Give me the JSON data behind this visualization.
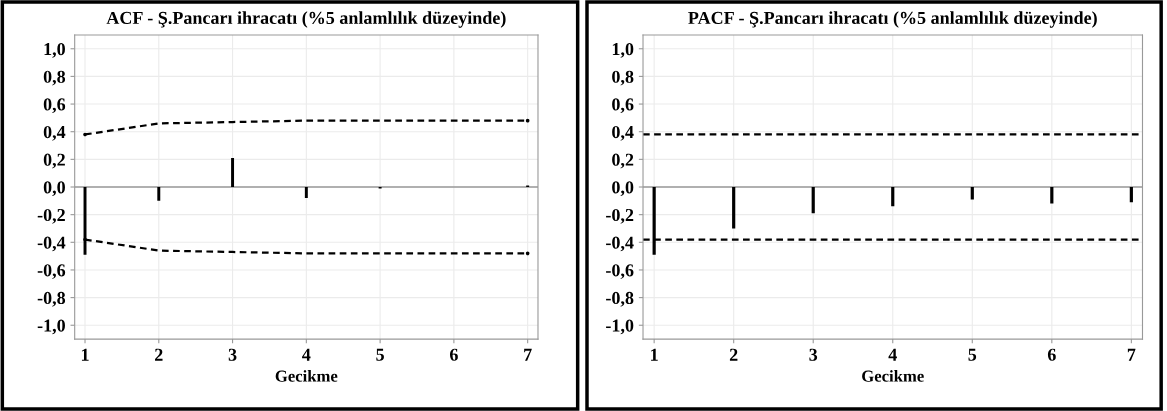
{
  "chart_data": [
    {
      "type": "bar",
      "title": "ACF - Ş.Pancarı ihracatı (%5 anlamlılık düzeyinde)",
      "xlabel": "Gecikme",
      "x": [
        1,
        2,
        3,
        4,
        5,
        6,
        7
      ],
      "series": [
        {
          "color": "#000000",
          "values": [
            -0.49,
            -0.1,
            0.21,
            -0.08,
            -0.01,
            0.0,
            0.01
          ]
        },
        {
          "type": "line",
          "color": "#000000",
          "line_style": "dashed",
          "x": [
            1,
            2,
            3,
            4,
            5,
            6,
            7
          ],
          "values": [
            0.38,
            0.46,
            0.47,
            0.48,
            0.48,
            0.48,
            0.48
          ]
        },
        {
          "type": "line",
          "color": "#000000",
          "line_style": "dashed",
          "x": [
            1,
            2,
            3,
            4,
            5,
            6,
            7
          ],
          "values": [
            -0.38,
            -0.46,
            -0.47,
            -0.48,
            -0.48,
            -0.48,
            -0.48
          ]
        }
      ],
      "ref_lines": [
        {
          "axis": "y",
          "value": 0,
          "color": "#999999"
        }
      ],
      "xlim": [
        0.86,
        7.14
      ],
      "xticks": [
        1,
        2,
        3,
        4,
        5,
        6,
        7
      ],
      "ylim": [
        -1.1,
        1.1
      ],
      "yticks": [
        {
          "value": -1.0,
          "label": "-1,0"
        },
        {
          "value": -0.8,
          "label": "-0,8"
        },
        {
          "value": -0.6,
          "label": "-0,6"
        },
        {
          "value": -0.4,
          "label": "-0,4"
        },
        {
          "value": -0.2,
          "label": "-0,2"
        },
        {
          "value": 0.0,
          "label": "0,0"
        },
        {
          "value": 0.2,
          "label": "0,2"
        },
        {
          "value": 0.4,
          "label": "0,4"
        },
        {
          "value": 0.6,
          "label": "0,6"
        },
        {
          "value": 0.8,
          "label": "0,8"
        },
        {
          "value": 1.0,
          "label": "1,0"
        }
      ],
      "grid": true
    },
    {
      "type": "bar",
      "title": "PACF - Ş.Pancarı ihracatı (%5 anlamlılık düzeyinde)",
      "xlabel": "Gecikme",
      "x": [
        1,
        2,
        3,
        4,
        5,
        6,
        7
      ],
      "series": [
        {
          "color": "#000000",
          "values": [
            -0.49,
            -0.3,
            -0.19,
            -0.14,
            -0.09,
            -0.12,
            -0.11
          ]
        }
      ],
      "ref_lines": [
        {
          "axis": "y",
          "value": 0,
          "color": "#999999"
        },
        {
          "axis": "y",
          "value": 0.38,
          "color": "#000000",
          "line_style": "dashed"
        },
        {
          "axis": "y",
          "value": -0.38,
          "color": "#000000",
          "line_style": "dashed"
        }
      ],
      "xlim": [
        0.86,
        7.14
      ],
      "xticks": [
        1,
        2,
        3,
        4,
        5,
        6,
        7
      ],
      "ylim": [
        -1.1,
        1.1
      ],
      "yticks": [
        {
          "value": -1.0,
          "label": "-1,0"
        },
        {
          "value": -0.8,
          "label": "-0,8"
        },
        {
          "value": -0.6,
          "label": "-0,6"
        },
        {
          "value": -0.4,
          "label": "-0,4"
        },
        {
          "value": -0.2,
          "label": "-0,2"
        },
        {
          "value": 0.0,
          "label": "0,0"
        },
        {
          "value": 0.2,
          "label": "0,2"
        },
        {
          "value": 0.4,
          "label": "0,4"
        },
        {
          "value": 0.6,
          "label": "0,6"
        },
        {
          "value": 0.8,
          "label": "0,8"
        },
        {
          "value": 1.0,
          "label": "1,0"
        }
      ],
      "grid": true
    }
  ]
}
